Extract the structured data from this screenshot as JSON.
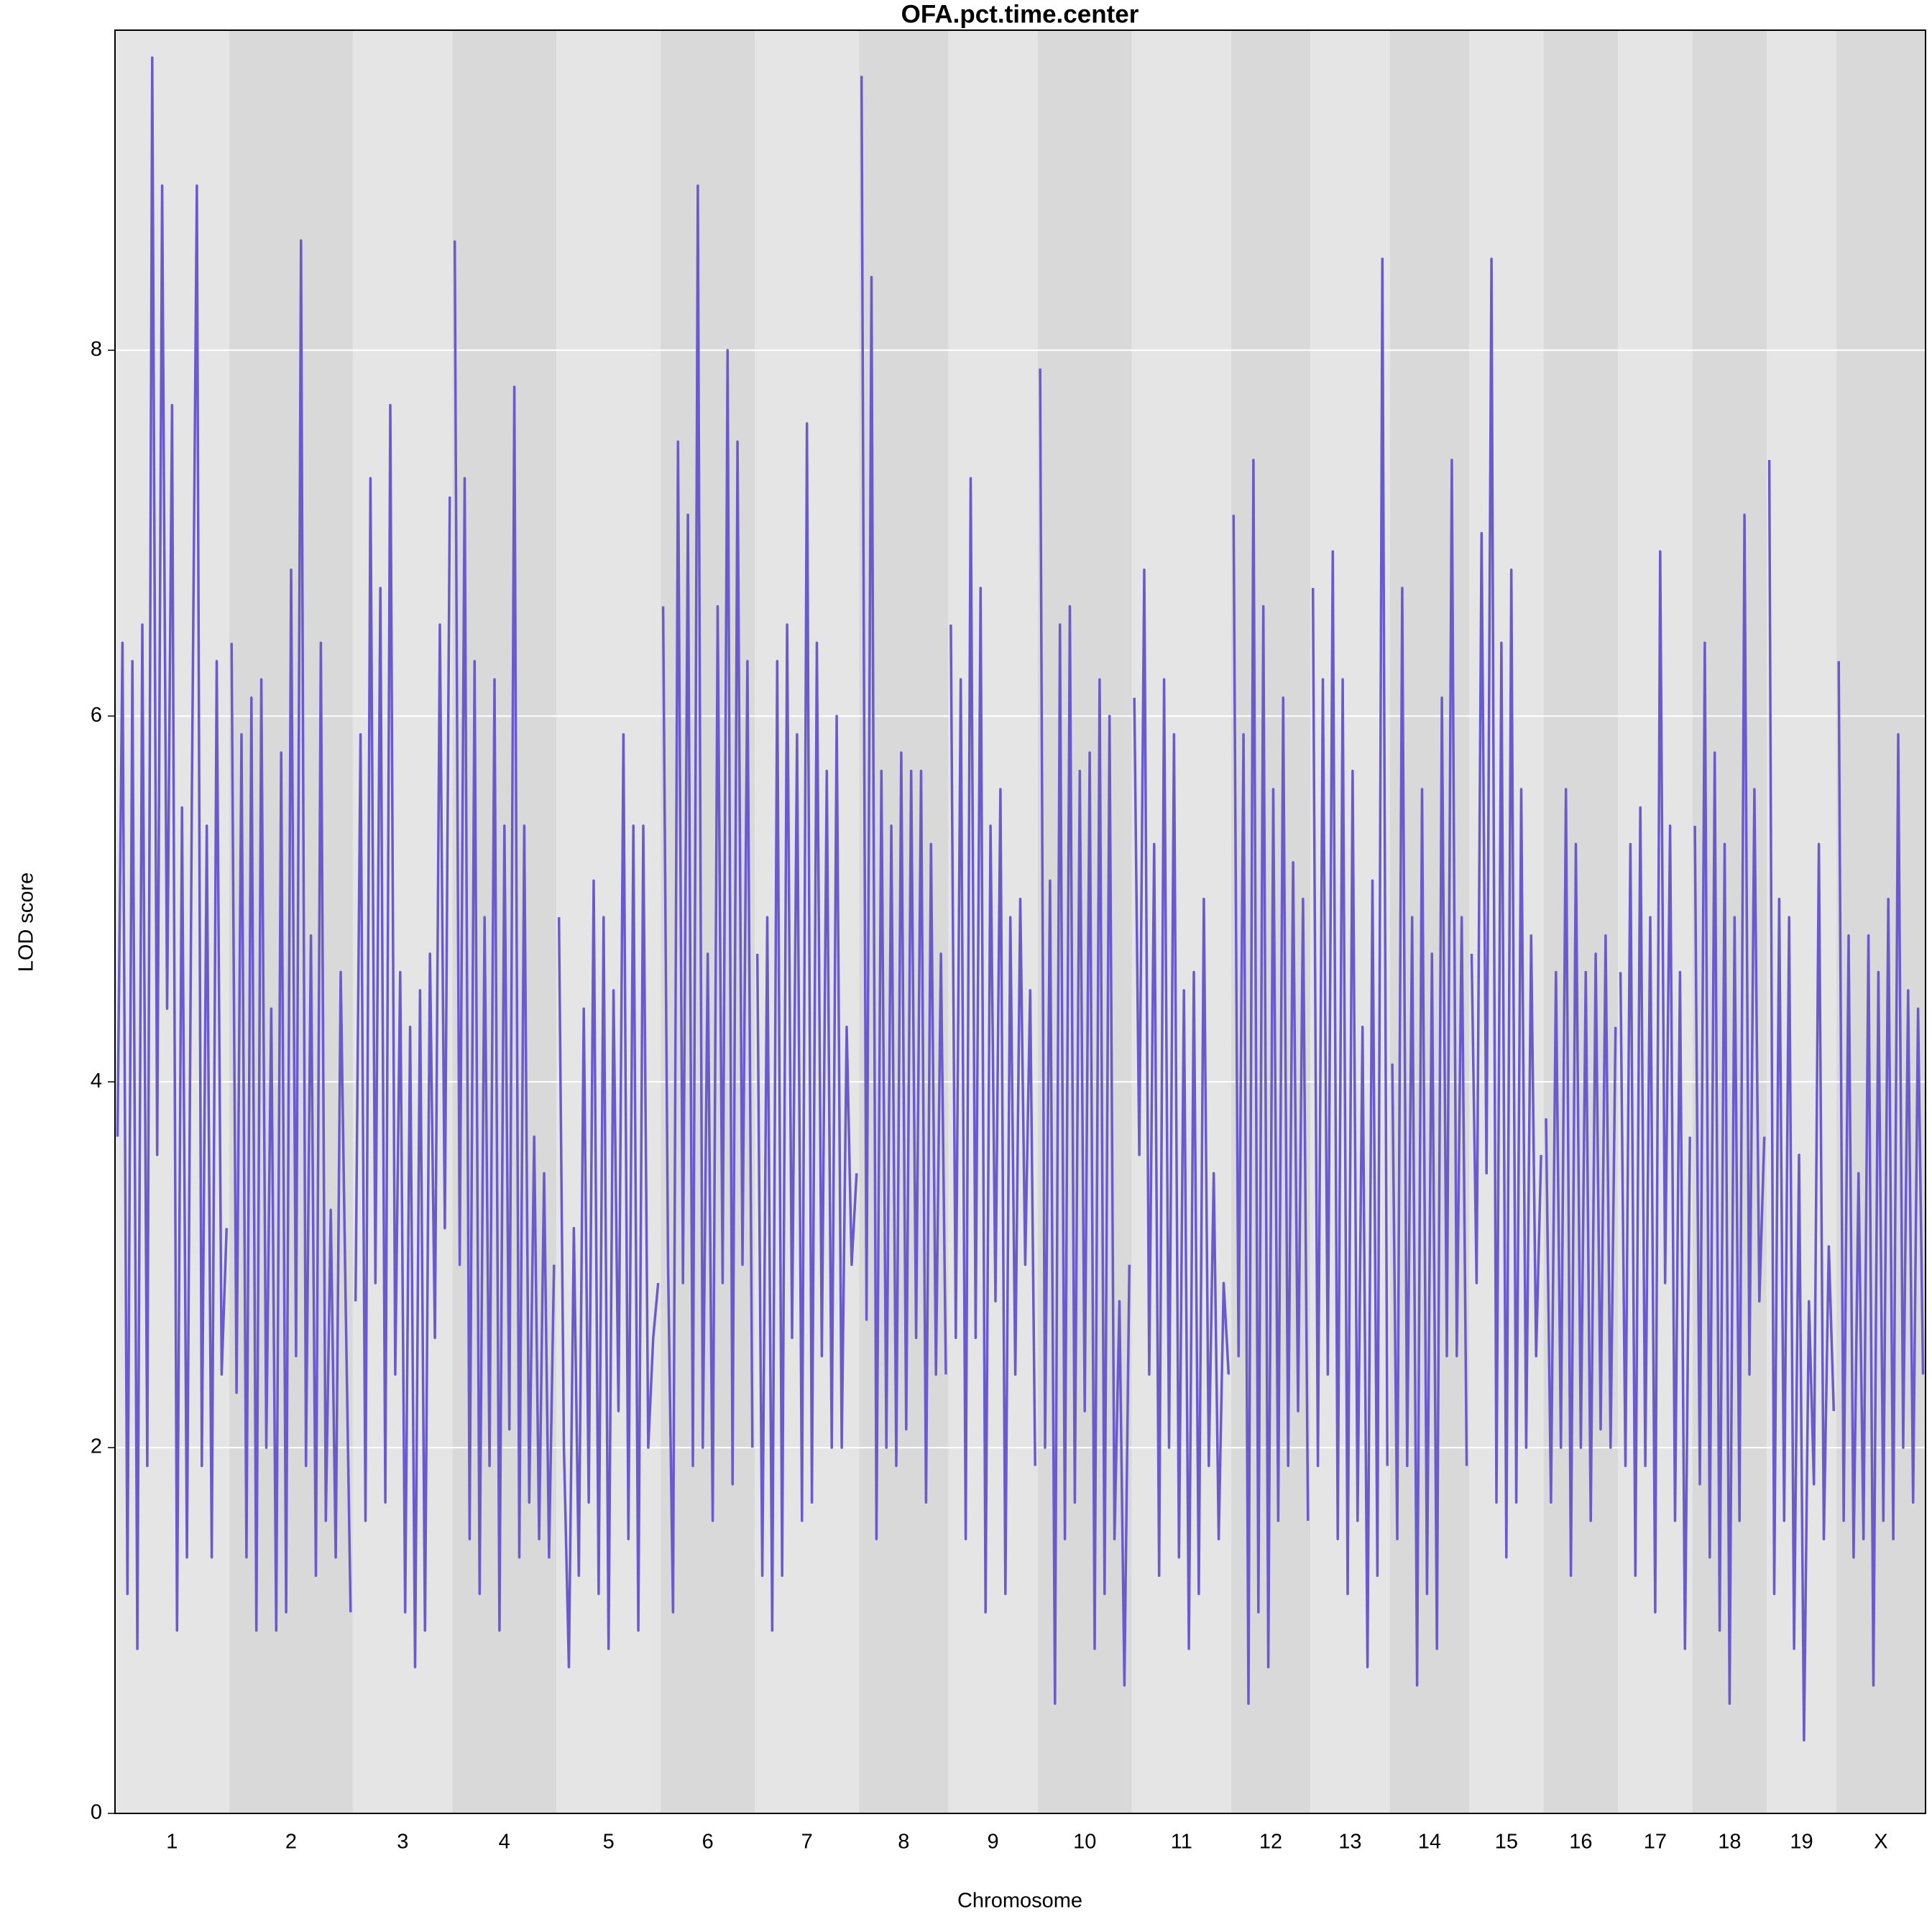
{
  "chart_data": {
    "type": "line",
    "title": "OFA.pct.time.center",
    "x_label": "Chromosome",
    "y_label": "LOD score",
    "color": "#6a5acd",
    "band_colors": [
      "#e5e5e5",
      "#d9d9d9"
    ],
    "ylim": [
      0,
      9.75
    ],
    "yticks": [
      0,
      2,
      4,
      6,
      8
    ],
    "grid": true,
    "series": [
      {
        "name": "1",
        "values": [
          3.7,
          6.4,
          1.2,
          6.3,
          0.9,
          6.5,
          1.9,
          9.6,
          3.6,
          8.9,
          4.4,
          7.7,
          1.0,
          5.5,
          1.4,
          5.6,
          8.9,
          1.9,
          5.4,
          1.4,
          6.3,
          2.4,
          3.2
        ]
      },
      {
        "name": "2",
        "values": [
          6.4,
          2.3,
          5.9,
          1.4,
          6.1,
          1.0,
          6.2,
          2.0,
          4.4,
          1.0,
          5.8,
          1.1,
          6.8,
          2.5,
          8.6,
          1.9,
          4.8,
          1.3,
          6.4,
          1.6,
          3.3,
          1.4,
          4.6,
          2.8,
          1.1
        ]
      },
      {
        "name": "3",
        "values": [
          2.8,
          5.9,
          1.6,
          7.3,
          2.9,
          6.7,
          1.7,
          7.7,
          2.4,
          4.6,
          1.1,
          4.3,
          0.8,
          4.5,
          1.0,
          4.7,
          2.6,
          6.5,
          3.2,
          7.2
        ]
      },
      {
        "name": "4",
        "values": [
          8.6,
          3.0,
          7.3,
          1.5,
          6.3,
          1.2,
          4.9,
          1.9,
          6.2,
          1.0,
          5.4,
          2.1,
          7.8,
          1.4,
          5.4,
          1.7,
          3.7,
          1.5,
          3.5,
          1.4,
          3.0
        ]
      },
      {
        "name": "5",
        "values": [
          4.9,
          2.0,
          0.8,
          3.2,
          1.3,
          4.4,
          1.7,
          5.1,
          1.2,
          4.9,
          0.9,
          4.5,
          2.2,
          5.9,
          1.5,
          5.4,
          1.0,
          5.4,
          2.0,
          2.6,
          2.9
        ]
      },
      {
        "name": "6",
        "values": [
          6.6,
          3.0,
          1.1,
          7.5,
          2.9,
          7.1,
          1.9,
          8.9,
          2.0,
          4.7,
          1.6,
          6.6,
          2.9,
          8.0,
          1.8,
          7.5,
          3.0,
          6.3,
          2.0
        ]
      },
      {
        "name": "7",
        "values": [
          4.7,
          1.3,
          4.9,
          1.0,
          6.3,
          1.3,
          6.5,
          2.6,
          5.9,
          1.6,
          7.6,
          1.7,
          6.4,
          2.5,
          5.7,
          2.0,
          6.0,
          2.0,
          4.3,
          3.0,
          3.5
        ]
      },
      {
        "name": "8",
        "values": [
          9.5,
          2.7,
          8.4,
          1.5,
          5.7,
          2.0,
          5.4,
          1.9,
          5.8,
          2.1,
          5.7,
          2.6,
          5.7,
          1.7,
          5.3,
          2.4,
          4.7,
          2.4
        ]
      },
      {
        "name": "9",
        "values": [
          6.5,
          2.6,
          6.2,
          1.5,
          7.3,
          2.6,
          6.7,
          1.1,
          5.4,
          2.8,
          5.6,
          1.2,
          4.9,
          2.4,
          5.0,
          3.0,
          4.5,
          1.9
        ]
      },
      {
        "name": "10",
        "values": [
          7.9,
          2.0,
          5.1,
          0.6,
          6.5,
          1.5,
          6.6,
          1.7,
          5.7,
          2.2,
          5.8,
          0.9,
          6.2,
          1.2,
          6.0,
          1.5,
          2.8,
          0.7,
          3.0
        ]
      },
      {
        "name": "11",
        "values": [
          6.1,
          3.6,
          6.8,
          2.4,
          5.3,
          1.3,
          6.2,
          2.0,
          5.9,
          1.4,
          4.5,
          0.9,
          4.6,
          1.2,
          5.0,
          1.9,
          3.5,
          1.5,
          2.9,
          2.4
        ]
      },
      {
        "name": "12",
        "values": [
          7.1,
          2.5,
          5.9,
          0.6,
          7.4,
          1.1,
          6.6,
          0.8,
          5.6,
          1.6,
          6.1,
          1.9,
          5.2,
          2.2,
          5.0,
          1.6
        ]
      },
      {
        "name": "13",
        "values": [
          6.7,
          1.9,
          6.2,
          2.4,
          6.9,
          1.5,
          6.2,
          1.2,
          5.7,
          1.6,
          4.3,
          0.8,
          5.1,
          1.3,
          8.5,
          1.9
        ]
      },
      {
        "name": "14",
        "values": [
          4.1,
          1.5,
          6.7,
          1.9,
          4.9,
          0.7,
          5.6,
          1.2,
          4.7,
          0.9,
          6.1,
          2.5,
          7.4,
          2.5,
          4.9,
          1.9
        ]
      },
      {
        "name": "15",
        "values": [
          4.7,
          2.9,
          7.0,
          3.5,
          8.5,
          1.7,
          6.4,
          1.4,
          6.8,
          1.7,
          5.6,
          2.0,
          4.8,
          2.5,
          3.6
        ]
      },
      {
        "name": "16",
        "values": [
          3.8,
          1.7,
          4.6,
          2.0,
          5.6,
          1.3,
          5.3,
          2.0,
          4.6,
          1.6,
          4.7,
          2.1,
          4.8,
          2.0,
          4.3
        ]
      },
      {
        "name": "17",
        "values": [
          4.6,
          1.9,
          5.3,
          1.3,
          5.5,
          1.9,
          4.9,
          1.1,
          6.9,
          2.9,
          5.4,
          1.6,
          4.6,
          0.9,
          3.7
        ]
      },
      {
        "name": "18",
        "values": [
          5.4,
          1.8,
          6.4,
          1.4,
          5.8,
          1.0,
          5.3,
          0.6,
          4.9,
          1.6,
          7.1,
          2.4,
          5.6,
          2.8,
          3.7
        ]
      },
      {
        "name": "19",
        "values": [
          7.4,
          1.2,
          5.0,
          1.6,
          4.9,
          0.9,
          3.6,
          0.4,
          2.8,
          1.8,
          5.3,
          1.5,
          3.1,
          2.2
        ]
      },
      {
        "name": "X",
        "values": [
          6.3,
          1.6,
          4.8,
          1.4,
          3.5,
          1.5,
          4.8,
          0.7,
          4.6,
          1.6,
          5.0,
          1.5,
          5.9,
          2.0,
          4.5,
          1.7,
          4.4,
          2.4
        ]
      }
    ]
  }
}
